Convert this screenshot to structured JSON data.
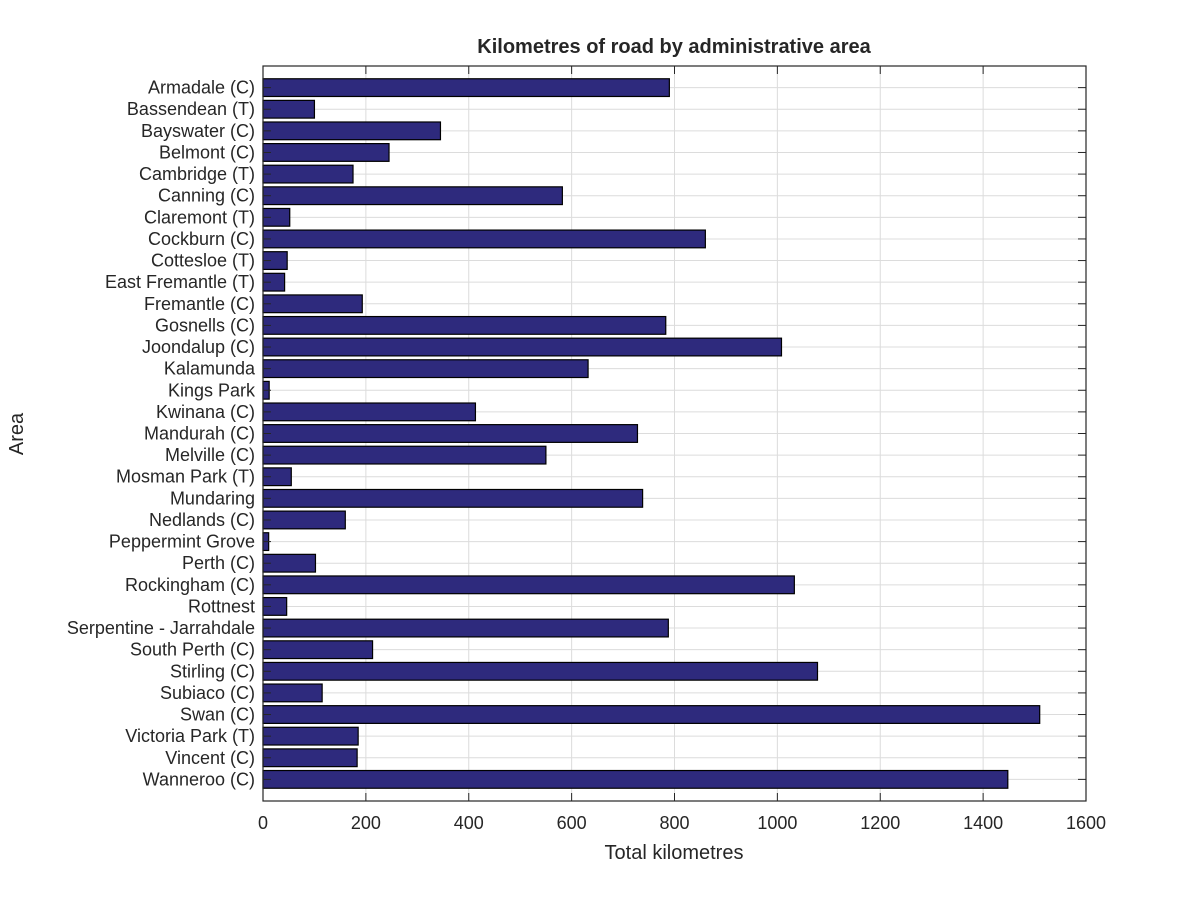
{
  "chart_data": {
    "type": "bar",
    "orientation": "horizontal",
    "title": "Kilometres of road by administrative area",
    "xlabel": "Total kilometres",
    "ylabel": "Area",
    "xlim": [
      0,
      1600
    ],
    "xticks": [
      "0",
      "200",
      "400",
      "600",
      "800",
      "1000",
      "1200",
      "1400",
      "1600"
    ],
    "grid": true,
    "bar_color": "#2e2a7d",
    "bar_edge_color": "#000000",
    "categories": [
      "Armadale (C)",
      "Bassendean (T)",
      "Bayswater (C)",
      "Belmont (C)",
      "Cambridge (T)",
      "Canning (C)",
      "Claremont (T)",
      "Cockburn (C)",
      "Cottesloe (T)",
      "East Fremantle (T)",
      "Fremantle (C)",
      "Gosnells (C)",
      "Joondalup (C)",
      "Kalamunda",
      "Kings Park",
      "Kwinana (C)",
      "Mandurah (C)",
      "Melville (C)",
      "Mosman Park (T)",
      "Mundaring",
      "Nedlands (C)",
      "Peppermint Grove",
      "Perth (C)",
      "Rockingham (C)",
      "Rottnest",
      "Serpentine - Jarrahdale",
      "South Perth (C)",
      "Stirling (C)",
      "Subiaco (C)",
      "Swan (C)",
      "Victoria Park (T)",
      "Vincent (C)",
      "Wanneroo (C)"
    ],
    "values": [
      790,
      100,
      345,
      245,
      175,
      582,
      52,
      860,
      47,
      42,
      193,
      783,
      1008,
      632,
      12,
      413,
      728,
      550,
      55,
      738,
      160,
      11,
      102,
      1033,
      46,
      788,
      213,
      1078,
      115,
      1510,
      185,
      183,
      1448
    ]
  }
}
